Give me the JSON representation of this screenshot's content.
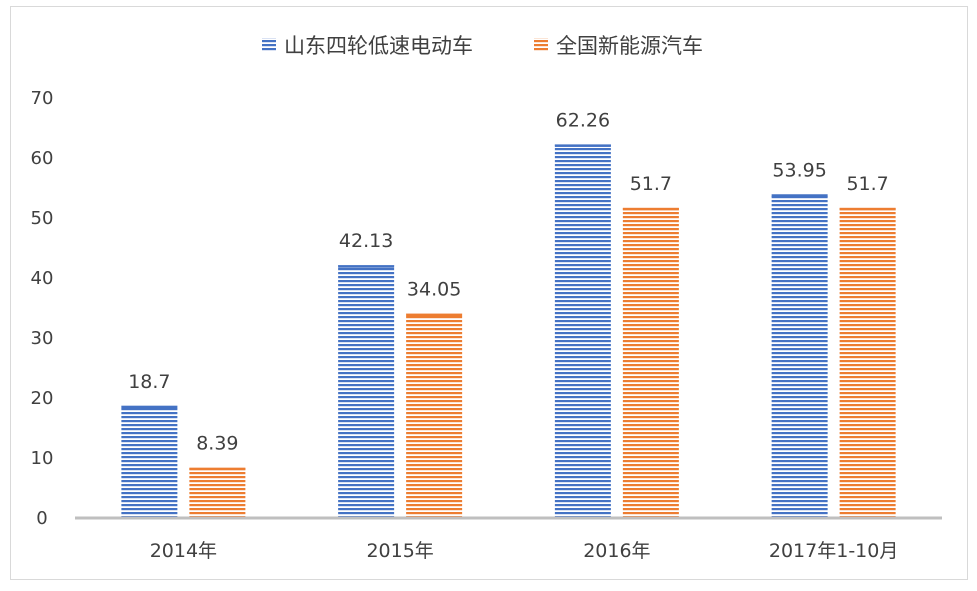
{
  "chart_data": {
    "type": "bar",
    "title": "",
    "xlabel": "",
    "ylabel": "",
    "categories": [
      "2014年",
      "2015年",
      "2016年",
      "2017年1-10月"
    ],
    "series": [
      {
        "name": "山东四轮低速电动车",
        "values": [
          18.7,
          42.13,
          62.26,
          53.95
        ],
        "labels": [
          "18.7",
          "42.13",
          "62.26",
          "53.95"
        ],
        "color": "#4472C4"
      },
      {
        "name": "全国新能源汽车",
        "values": [
          8.39,
          34.05,
          51.7,
          51.7
        ],
        "labels": [
          "8.39",
          "34.05",
          "51.7",
          "51.7"
        ],
        "color": "#ED7D31"
      }
    ],
    "ylim": [
      0,
      70
    ],
    "yticks": [
      "0",
      "10",
      "20",
      "30",
      "40",
      "50",
      "60",
      "70"
    ],
    "grid": false,
    "legend": "top-center",
    "bar_fill": "horizontal-stripes"
  }
}
